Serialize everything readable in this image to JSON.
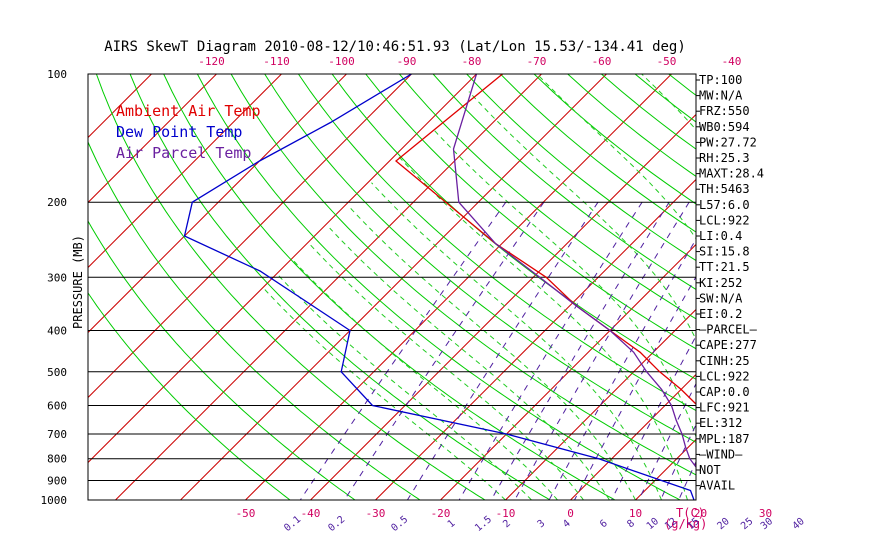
{
  "chart_data": {
    "type": "line",
    "title": "AIRS SkewT Diagram 2010-08-12/10:46:51.93 (Lat/Lon 15.53/-134.41 deg)",
    "ylabel": "PRESSURE (MB)",
    "xlabel_right": "T(C)",
    "mixing_unit_label": "(g/kg)",
    "pressure_ticks": [
      100,
      200,
      300,
      400,
      500,
      600,
      700,
      800,
      900,
      1000
    ],
    "top_temp_ticks": [
      -120,
      -110,
      -100,
      -90,
      -80,
      -70,
      -60,
      -50,
      -40
    ],
    "bottom_temp_ticks": [
      -50,
      -40,
      -30,
      -20,
      -10,
      0,
      10,
      20,
      30
    ],
    "mixing_ratio_ticks": [
      "0.1",
      "0.2",
      "0.5",
      "1",
      "1.5",
      "2",
      "3",
      "4",
      "6",
      "8",
      "10",
      "12",
      "15",
      "20",
      "25",
      "30",
      "40"
    ],
    "legend": [
      {
        "name": "Ambient Air Temp",
        "color": "#e00000"
      },
      {
        "name": "Dew Point Temp",
        "color": "#0000cc"
      },
      {
        "name": "Air Parcel Temp",
        "color": "#6a20a0"
      }
    ],
    "colors": {
      "isotherm": "#cc0000",
      "dry_adiabat": "#00cc00",
      "moist_adiabat": "#22cc22",
      "mixing_ratio": "#5020a0",
      "isobar": "#000000",
      "axis_label": "#d00060",
      "cape_hatch": "#800060"
    },
    "series": [
      {
        "name": "Ambient Air Temp",
        "points": [
          [
            100,
            -76
          ],
          [
            160,
            -79
          ],
          [
            200,
            -65
          ],
          [
            250,
            -51
          ],
          [
            300,
            -38
          ],
          [
            350,
            -29
          ],
          [
            400,
            -20
          ],
          [
            450,
            -12
          ],
          [
            500,
            -6
          ],
          [
            550,
            0
          ],
          [
            600,
            5
          ],
          [
            650,
            9
          ],
          [
            700,
            12
          ],
          [
            750,
            13
          ],
          [
            800,
            15
          ],
          [
            850,
            17
          ],
          [
            900,
            21
          ],
          [
            925,
            23
          ],
          [
            950,
            23
          ],
          [
            975,
            26
          ],
          [
            1000,
            28
          ]
        ]
      },
      {
        "name": "Dew Point Temp",
        "points": [
          [
            100,
            -90
          ],
          [
            130,
            -95
          ],
          [
            160,
            -100
          ],
          [
            200,
            -104
          ],
          [
            240,
            -100
          ],
          [
            290,
            -83
          ],
          [
            400,
            -60
          ],
          [
            500,
            -55
          ],
          [
            600,
            -45
          ],
          [
            700,
            -20
          ],
          [
            800,
            -2
          ],
          [
            900,
            11
          ],
          [
            950,
            17
          ],
          [
            1000,
            19
          ]
        ]
      },
      {
        "name": "Air Parcel Temp",
        "points": [
          [
            100,
            -80
          ],
          [
            150,
            -72
          ],
          [
            200,
            -63
          ],
          [
            250,
            -51
          ],
          [
            300,
            -39
          ],
          [
            350,
            -29
          ],
          [
            400,
            -20
          ],
          [
            450,
            -13
          ],
          [
            500,
            -8
          ],
          [
            550,
            -3
          ],
          [
            600,
            1
          ],
          [
            650,
            4
          ],
          [
            700,
            7
          ],
          [
            750,
            9.5
          ],
          [
            800,
            12
          ],
          [
            850,
            15
          ],
          [
            900,
            18
          ],
          [
            922,
            20
          ],
          [
            950,
            23
          ],
          [
            1000,
            28
          ]
        ]
      }
    ],
    "indices": [
      "TP:100",
      "MW:N/A",
      "FRZ:550",
      "WB0:594",
      "PW:27.72",
      "RH:25.3",
      "MAXT:28.4",
      "TH:5463",
      "L57:6.0",
      "LCL:922",
      "LI:0.4",
      "SI:15.8",
      "TT:21.5",
      "KI:252",
      "SW:N/A",
      "EI:0.2",
      "—PARCEL—",
      "CAPE:277",
      "CINH:25",
      "LCL:922",
      "CAP:0.0",
      "LFC:921",
      "EL:312",
      "MPL:187",
      "—WIND—",
      "NOT",
      "AVAIL"
    ]
  }
}
